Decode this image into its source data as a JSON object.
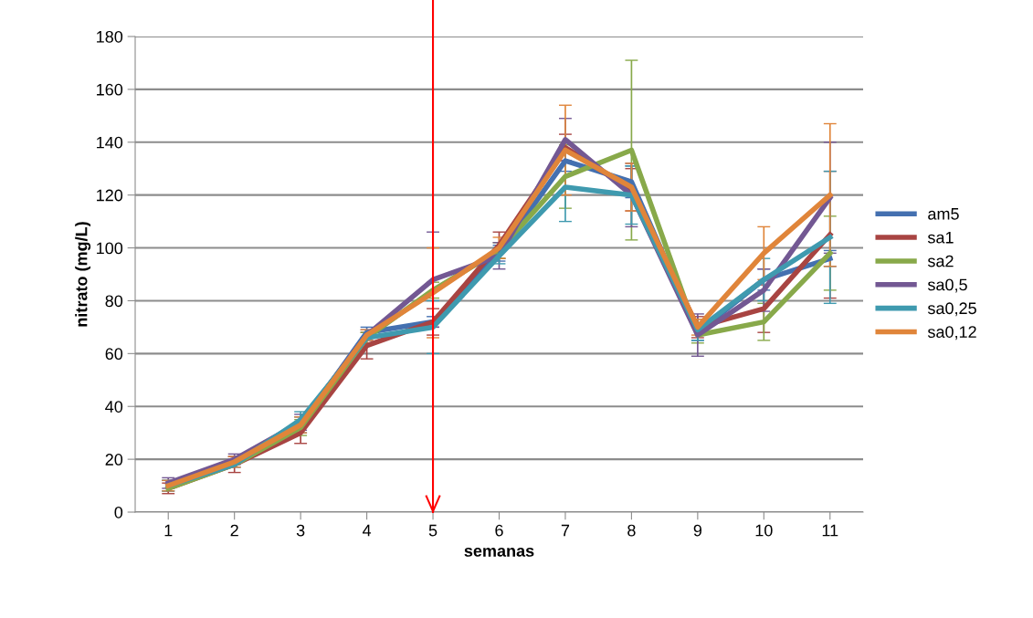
{
  "chart_data": {
    "type": "line",
    "xlabel": "semanas",
    "ylabel": "nitrato (mg/L)",
    "categories": [
      "1",
      "2",
      "3",
      "4",
      "5",
      "6",
      "7",
      "8",
      "9",
      "10",
      "11"
    ],
    "series": [
      {
        "name": "am5",
        "color": "#4470b0",
        "values": [
          10,
          19,
          33,
          68,
          72,
          98,
          133,
          125,
          68,
          88,
          96
        ],
        "errors": [
          2,
          2,
          3,
          2,
          2,
          3,
          4,
          6,
          3,
          4,
          3
        ]
      },
      {
        "name": "sa1",
        "color": "#a84442",
        "values": [
          9,
          18,
          30,
          63,
          72,
          101,
          138,
          122,
          70,
          77,
          105
        ],
        "errors": [
          2,
          3,
          4,
          5,
          5,
          5,
          5,
          8,
          4,
          9,
          24
        ]
      },
      {
        "name": "sa2",
        "color": "#88a94a",
        "values": [
          9,
          18,
          32,
          66,
          84,
          99,
          127,
          137,
          67,
          72,
          98
        ],
        "errors": [
          null,
          null,
          3,
          2,
          3,
          3,
          12,
          34,
          3,
          7,
          14
        ]
      },
      {
        "name": "sa0,5",
        "color": "#735893",
        "values": [
          11,
          20,
          34,
          67,
          88,
          97,
          141,
          120,
          67,
          84,
          119
        ],
        "errors": [
          2,
          2,
          3,
          2,
          18,
          5,
          8,
          12,
          8,
          8,
          21
        ]
      },
      {
        "name": "sa0,25",
        "color": "#3f9aaf",
        "values": [
          10,
          18,
          35,
          66,
          70,
          97,
          123,
          120,
          69,
          88,
          104
        ],
        "errors": [
          2,
          null,
          3,
          null,
          10,
          3,
          13,
          11,
          4,
          8,
          25
        ]
      },
      {
        "name": "sa0,12",
        "color": "#e0853a",
        "values": [
          10,
          19,
          33,
          67,
          83,
          100,
          137,
          123,
          70,
          98,
          120
        ],
        "errors": [
          2,
          2,
          3,
          2,
          17,
          4,
          17,
          9,
          3,
          10,
          27
        ]
      }
    ],
    "ylim": [
      0,
      180
    ],
    "yticks": [
      0,
      20,
      40,
      60,
      80,
      100,
      120,
      140,
      160,
      180
    ],
    "ref_lines": [
      {
        "axis": "x",
        "value": "5",
        "color": "#ff0000"
      }
    ],
    "grid": "y",
    "legend": "right",
    "marker": "none",
    "line_style": "solid"
  }
}
